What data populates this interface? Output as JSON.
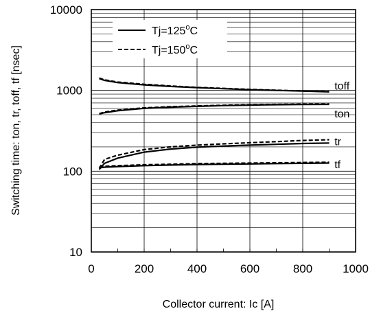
{
  "chart_data": {
    "type": "line",
    "title": "",
    "xlabel": "Collector current: Ic [A]",
    "ylabel": "Switching time: ton, tr, toff, tf [nsec]",
    "xlim": [
      0,
      1000
    ],
    "ylim": [
      10,
      10000
    ],
    "y_scale": "log",
    "grid": true,
    "legend_position": "top-left",
    "x_tick_labels": [
      "0",
      "200",
      "400",
      "600",
      "800",
      "1000"
    ],
    "y_tick_labels": [
      "10",
      "100",
      "1000",
      "10000"
    ],
    "legend": [
      {
        "text": "Tj=125",
        "sup": "o",
        "unit": "C",
        "style": "solid"
      },
      {
        "text": "Tj=150",
        "sup": "o",
        "unit": "C",
        "style": "dashed"
      }
    ],
    "x": [
      30,
      50,
      100,
      200,
      300,
      400,
      500,
      600,
      700,
      800,
      900
    ],
    "series": [
      {
        "curve": "toff",
        "temperature": "125",
        "style": "solid",
        "values": [
          1400,
          1330,
          1250,
          1170,
          1120,
          1080,
          1050,
          1020,
          1000,
          980,
          960
        ]
      },
      {
        "curve": "toff",
        "temperature": "150",
        "style": "dashed",
        "values": [
          1420,
          1350,
          1270,
          1190,
          1135,
          1090,
          1060,
          1030,
          1005,
          985,
          965
        ]
      },
      {
        "curve": "ton",
        "temperature": "125",
        "style": "solid",
        "values": [
          510,
          530,
          560,
          600,
          620,
          635,
          648,
          658,
          665,
          670,
          672
        ]
      },
      {
        "curve": "ton",
        "temperature": "150",
        "style": "dashed",
        "values": [
          515,
          540,
          570,
          608,
          628,
          642,
          655,
          665,
          672,
          677,
          680
        ]
      },
      {
        "curve": "tr",
        "temperature": "125",
        "style": "solid",
        "values": [
          105,
          125,
          145,
          172,
          188,
          198,
          205,
          210,
          215,
          220,
          223
        ]
      },
      {
        "curve": "tr",
        "temperature": "150",
        "style": "dashed",
        "values": [
          108,
          140,
          158,
          185,
          200,
          210,
          218,
          225,
          232,
          240,
          245
        ]
      },
      {
        "curve": "tf",
        "temperature": "125",
        "style": "solid",
        "values": [
          110,
          112,
          114,
          117,
          119,
          121,
          122,
          123,
          124,
          125,
          126
        ]
      },
      {
        "curve": "tf",
        "temperature": "150",
        "style": "dashed",
        "values": [
          112,
          115,
          117,
          120,
          122,
          124,
          125,
          126,
          127,
          128,
          129
        ]
      }
    ],
    "curve_labels": [
      {
        "text": "toff",
        "x": 920,
        "y": 1150
      },
      {
        "text": "ton",
        "x": 920,
        "y": 520
      },
      {
        "text": "tr",
        "x": 920,
        "y": 235
      },
      {
        "text": "tf",
        "x": 920,
        "y": 122
      }
    ]
  }
}
